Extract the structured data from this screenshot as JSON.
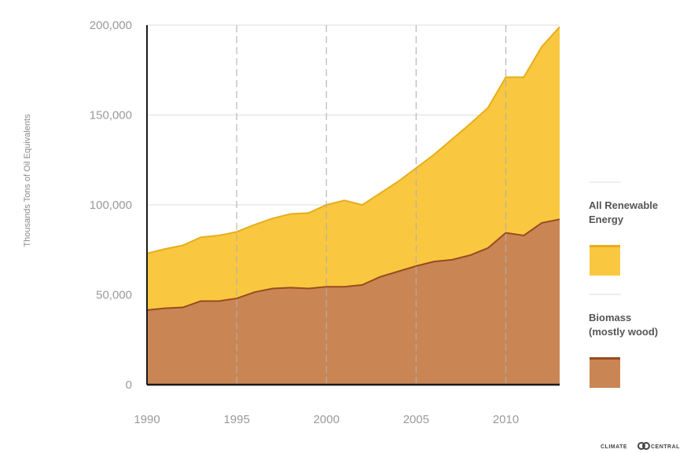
{
  "chart_data": {
    "type": "area",
    "stacked": false,
    "x": [
      1990,
      1991,
      1992,
      1993,
      1994,
      1995,
      1996,
      1997,
      1998,
      1999,
      2000,
      2001,
      2002,
      2003,
      2004,
      2005,
      2006,
      2007,
      2008,
      2009,
      2010,
      2011,
      2012,
      2013
    ],
    "series": [
      {
        "name": "All Renewable Energy",
        "color": "#f9c840",
        "line_color": "#e8ad1a",
        "values": [
          73000,
          75500,
          77500,
          82000,
          83000,
          85000,
          89000,
          92500,
          95000,
          95500,
          100000,
          102500,
          100000,
          106500,
          113000,
          120500,
          128000,
          136500,
          145000,
          154000,
          171000,
          171000,
          188000,
          199000
        ]
      },
      {
        "name": "Biomass (mostly wood)",
        "color": "#c98654",
        "line_color": "#9a4a20",
        "values": [
          41500,
          42500,
          43000,
          46500,
          46500,
          48000,
          51500,
          53500,
          54000,
          53500,
          54500,
          54500,
          55500,
          60000,
          63000,
          66000,
          68500,
          69500,
          72000,
          76000,
          84500,
          83000,
          90000,
          92000
        ]
      }
    ],
    "xticks": [
      "1990",
      "1995",
      "2000",
      "2005",
      "2010"
    ],
    "yticks": [
      "0",
      "50,000",
      "100,000",
      "150,000",
      "200,000"
    ],
    "ylabel": "Thousands Tons of Oil Equivalents",
    "xlabel": "",
    "title": "",
    "xlim": [
      1990,
      2013
    ],
    "ylim": [
      0,
      200000
    ],
    "grid": "horizontal lines and dashed vertical lines at tick years",
    "legend": {
      "placement": "right",
      "items": [
        {
          "line1": "All Renewable",
          "line2": "Energy"
        },
        {
          "line1": "Biomass",
          "line2": "(mostly wood)"
        }
      ]
    }
  },
  "credit": {
    "left_text": "CLIMATE",
    "right_text": "CENTRAL"
  }
}
